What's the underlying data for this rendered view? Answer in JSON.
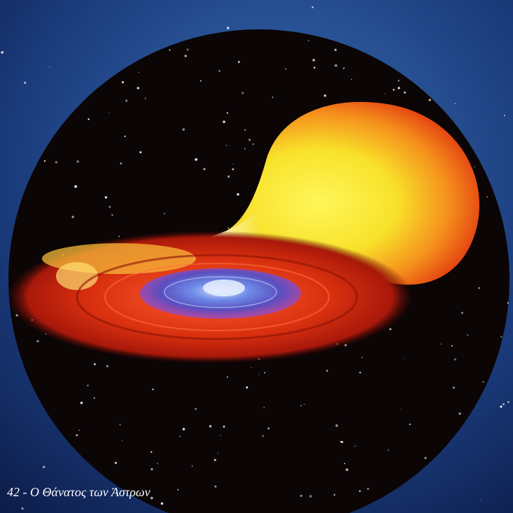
{
  "caption": "42 - Ο Θάνατος των Άστρων"
}
